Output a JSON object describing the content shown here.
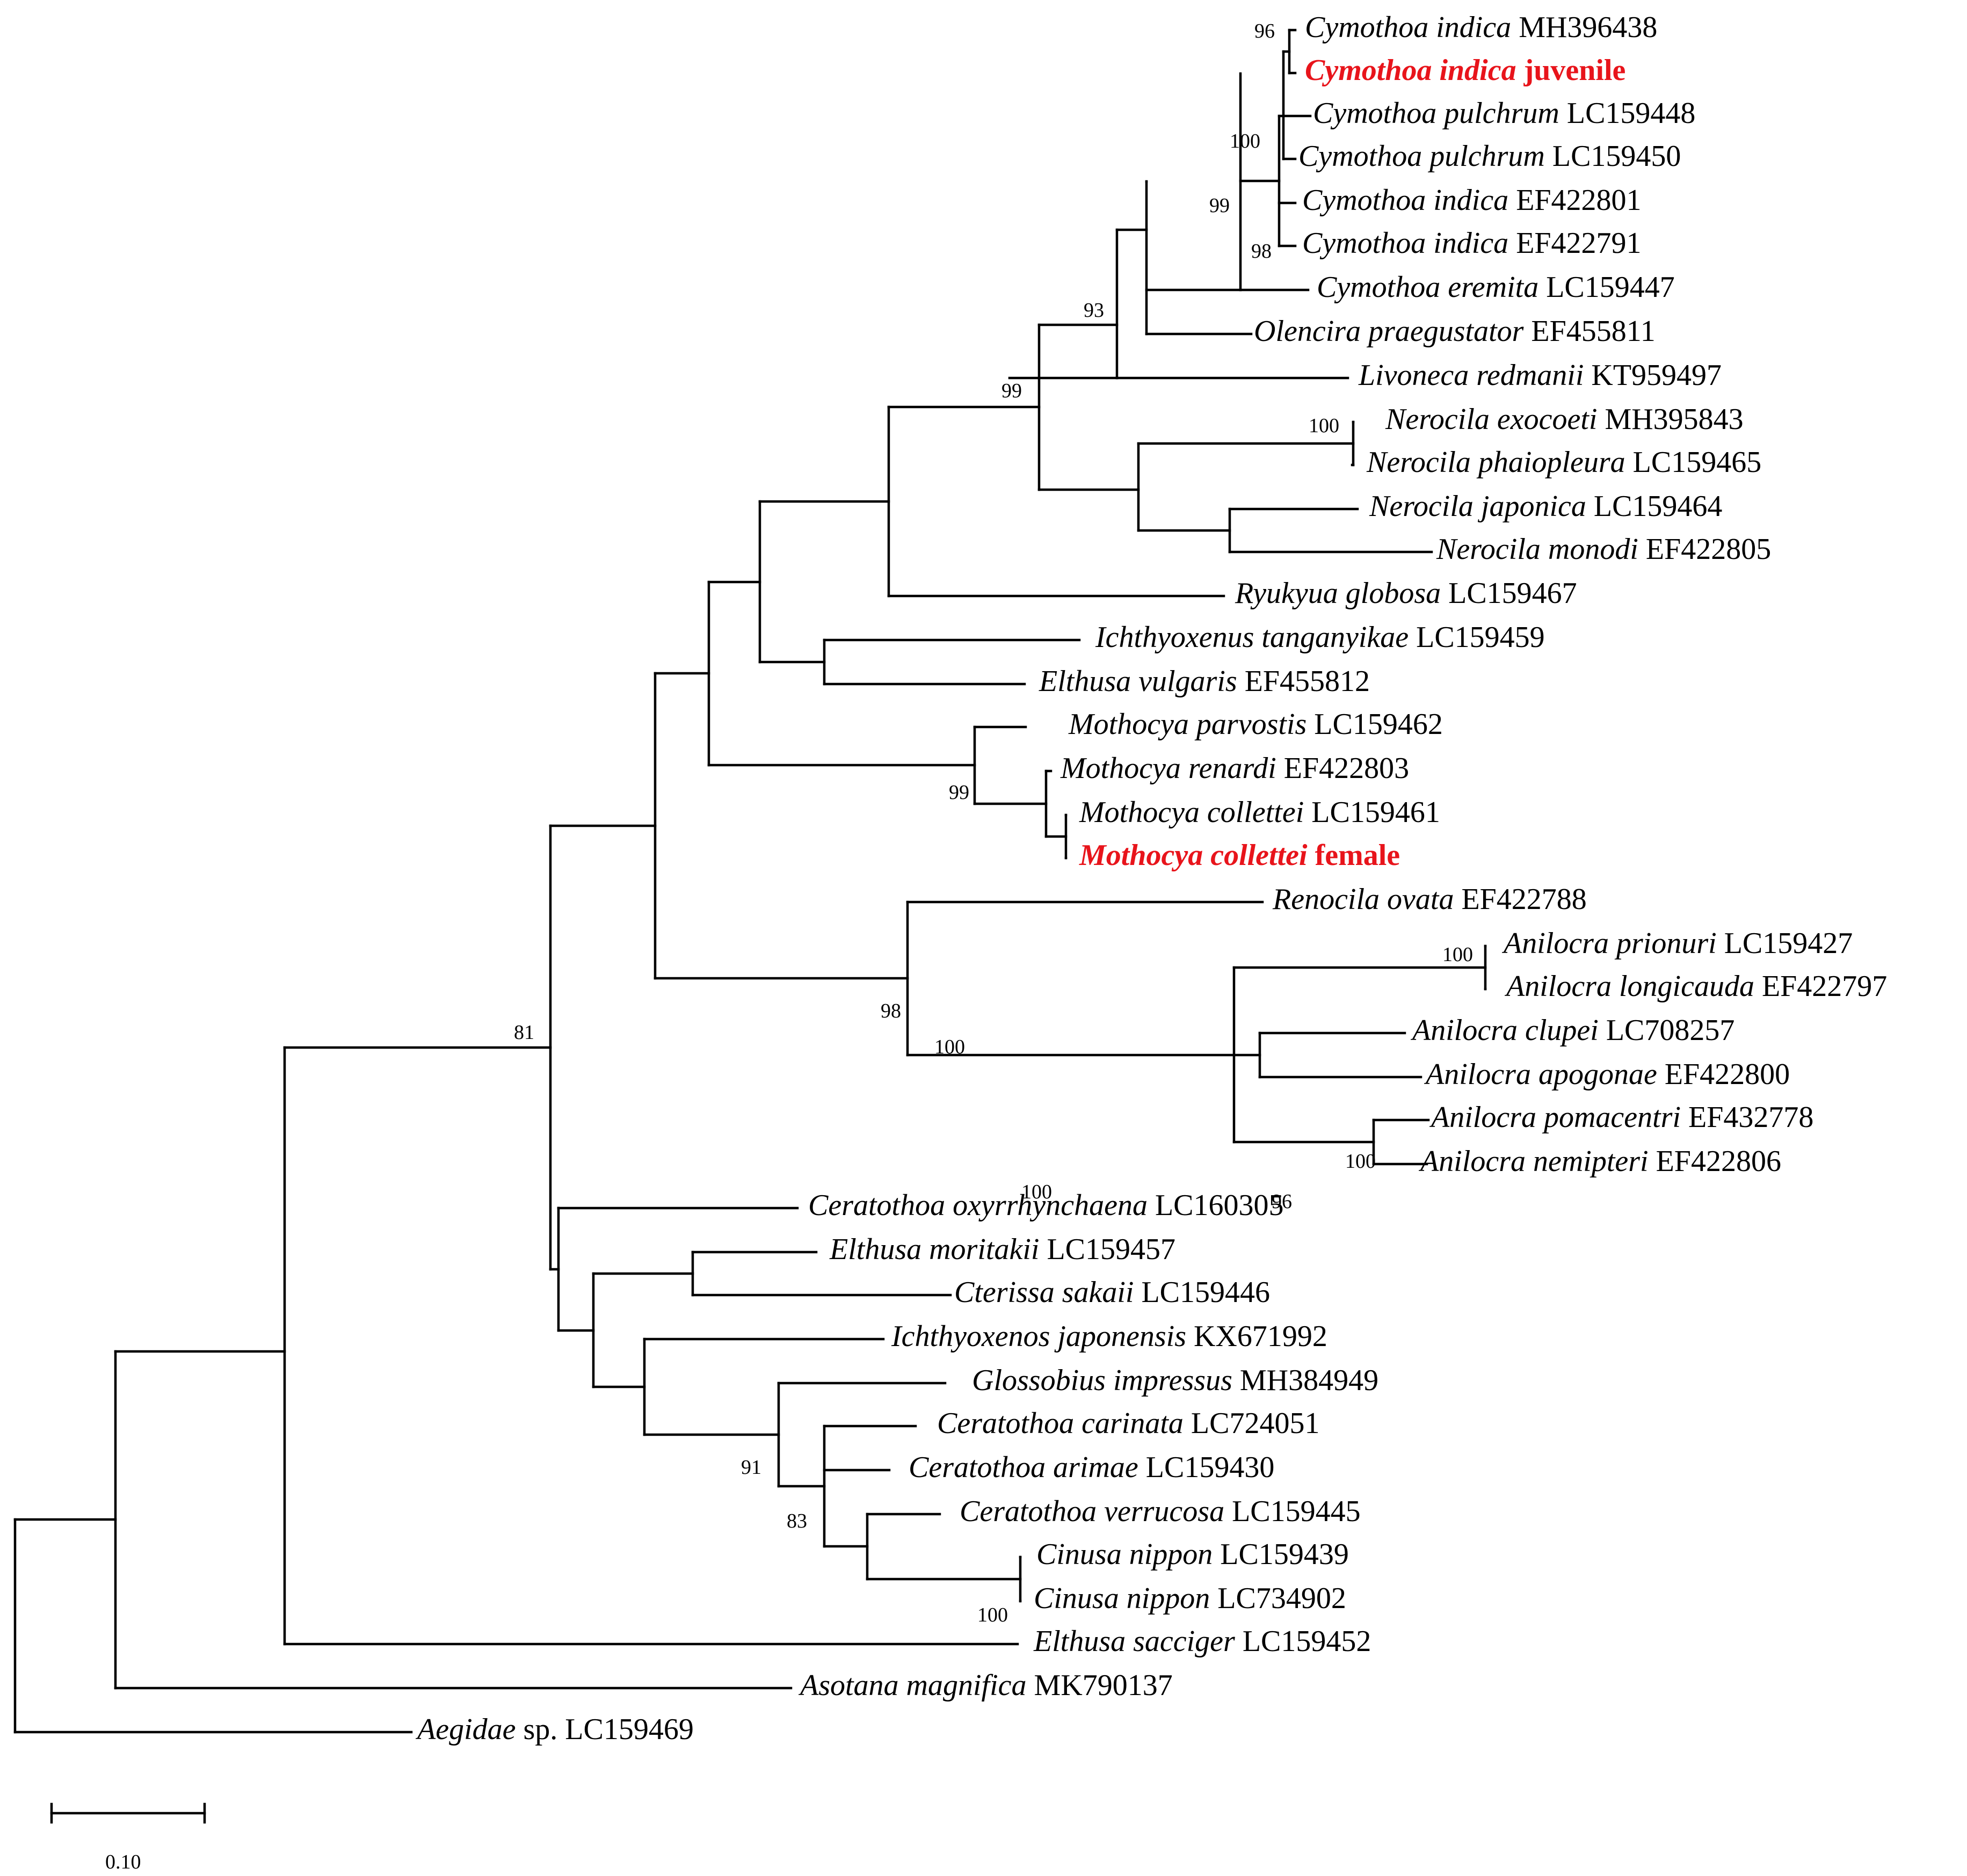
{
  "title": "",
  "tree": {
    "highlight_color": "#e8141b",
    "branch_color": "#000000",
    "tips": [
      {
        "genus": "Cymothoa indica",
        "acc": "MH396438",
        "hl": false
      },
      {
        "genus": "Cymothoa indica",
        "acc": "juvenile",
        "hl": true
      },
      {
        "genus": "Cymothoa pulchrum",
        "acc": "LC159448",
        "hl": false
      },
      {
        "genus": "Cymothoa pulchrum",
        "acc": "LC159450",
        "hl": false
      },
      {
        "genus": "Cymothoa indica",
        "acc": "EF422801",
        "hl": false
      },
      {
        "genus": "Cymothoa indica",
        "acc": "EF422791",
        "hl": false
      },
      {
        "genus": "Cymothoa eremita",
        "acc": "LC159447",
        "hl": false
      },
      {
        "genus": "Olencira praegustator",
        "acc": "EF455811",
        "hl": false
      },
      {
        "genus": "Livoneca redmanii",
        "acc": "KT959497",
        "hl": false
      },
      {
        "genus": "Nerocila exocoeti",
        "acc": "MH395843",
        "hl": false
      },
      {
        "genus": "Nerocila phaiopleura",
        "acc": "LC159465",
        "hl": false
      },
      {
        "genus": "Nerocila japonica",
        "acc": "LC159464",
        "hl": false
      },
      {
        "genus": "Nerocila monodi",
        "acc": "EF422805",
        "hl": false
      },
      {
        "genus": "Ryukyua globosa",
        "acc": "LC159467",
        "hl": false
      },
      {
        "genus": "Ichthyoxenus tanganyikae",
        "acc": "LC159459",
        "hl": false
      },
      {
        "genus": "Elthusa vulgaris",
        "acc": "EF455812",
        "hl": false
      },
      {
        "genus": "Mothocya parvostis",
        "acc": "LC159462",
        "hl": false
      },
      {
        "genus": "Mothocya renardi",
        "acc": "EF422803",
        "hl": false
      },
      {
        "genus": "Mothocya collettei",
        "acc": "LC159461",
        "hl": false
      },
      {
        "genus": "Mothocya collettei",
        "acc": "female",
        "hl": true
      },
      {
        "genus": "Renocila ovata",
        "acc": "EF422788",
        "hl": false
      },
      {
        "genus": "Anilocra prionuri",
        "acc": "LC159427",
        "hl": false
      },
      {
        "genus": "Anilocra longicauda",
        "acc": "EF422797",
        "hl": false
      },
      {
        "genus": "Anilocra clupei",
        "acc": "LC708257",
        "hl": false
      },
      {
        "genus": "Anilocra apogonae",
        "acc": "EF422800",
        "hl": false
      },
      {
        "genus": "Anilocra pomacentri",
        "acc": "EF432778",
        "hl": false
      },
      {
        "genus": "Anilocra nemipteri",
        "acc": "EF422806",
        "hl": false
      },
      {
        "genus": "Ceratothoa oxyrrhynchaena",
        "acc": "LC160305",
        "hl": false
      },
      {
        "genus": "Elthusa moritakii",
        "acc": "LC159457",
        "hl": false
      },
      {
        "genus": "Cterissa sakaii",
        "acc": "LC159446",
        "hl": false
      },
      {
        "genus": "Ichthyoxenos japonensis",
        "acc": "KX671992",
        "hl": false
      },
      {
        "genus": "Glossobius impressus",
        "acc": "MH384949",
        "hl": false
      },
      {
        "genus": "Ceratothoa carinata",
        "acc": "LC724051",
        "hl": false
      },
      {
        "genus": "Ceratothoa arimae",
        "acc": "LC159430",
        "hl": false
      },
      {
        "genus": "Ceratothoa verrucosa",
        "acc": "LC159445",
        "hl": false
      },
      {
        "genus": "Cinusa nippon",
        "acc": "LC159439",
        "hl": false
      },
      {
        "genus": "Cinusa nippon",
        "acc": "LC734902",
        "hl": false
      },
      {
        "genus": "Elthusa sacciger",
        "acc": "LC159452",
        "hl": false
      },
      {
        "genus": "Asotana magnifica",
        "acc": "MK790137",
        "hl": false
      },
      {
        "genus": "Aegidae",
        "acc": "sp. LC159469",
        "hl": false
      }
    ],
    "bootstrap": [
      "96",
      "100",
      "99",
      "98",
      "93",
      "99",
      "100",
      "99",
      "98",
      "100",
      "100",
      "96",
      "81",
      "100",
      "100",
      "91",
      "83",
      "100"
    ],
    "scale_label": "0.10"
  }
}
